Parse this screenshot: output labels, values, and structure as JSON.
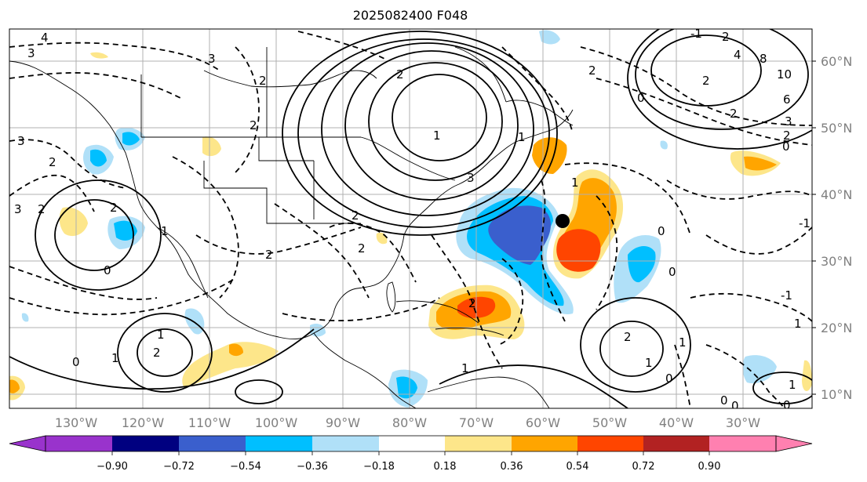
{
  "title": "2025082400 F048",
  "lon_labels": [
    "130°W",
    "120°W",
    "110°W",
    "100°W",
    "90°W",
    "80°W",
    "70°W",
    "60°W",
    "50°W",
    "40°W",
    "30°W"
  ],
  "lat_labels": [
    "60°N",
    "50°N",
    "40°N",
    "30°N",
    "20°N",
    "10°N"
  ],
  "colorbar": {
    "ticks": [
      "−0.90",
      "−0.72",
      "−0.54",
      "−0.36",
      "−0.18",
      "0.18",
      "0.36",
      "0.54",
      "0.72",
      "0.90"
    ],
    "colors": [
      "#9933cc",
      "#000080",
      "#3a5fcd",
      "#00bfff",
      "#b0e0f8",
      "#ffffff",
      "#fde68a",
      "#ffa500",
      "#ff4500",
      "#b22222",
      "#ff80b0"
    ]
  },
  "contour_labels": [
    "4",
    "3",
    "3",
    "2",
    "2",
    "3",
    "2",
    "2",
    "0",
    "-1",
    "2",
    "4",
    "8",
    "10",
    "6",
    "2",
    "3",
    "2",
    "0",
    "2",
    "2",
    "3",
    "2",
    "1",
    "0",
    "2",
    "2",
    "2",
    "0",
    "-1",
    "2",
    "1",
    "0",
    "0",
    "1",
    "1",
    "2",
    "2",
    "0",
    "1",
    "1",
    "3",
    "1",
    "0",
    "1",
    "-1",
    "1",
    "2",
    "1",
    "1",
    "0",
    "0"
  ],
  "marker": {
    "lon": "57°W",
    "lat": "36°N"
  }
}
